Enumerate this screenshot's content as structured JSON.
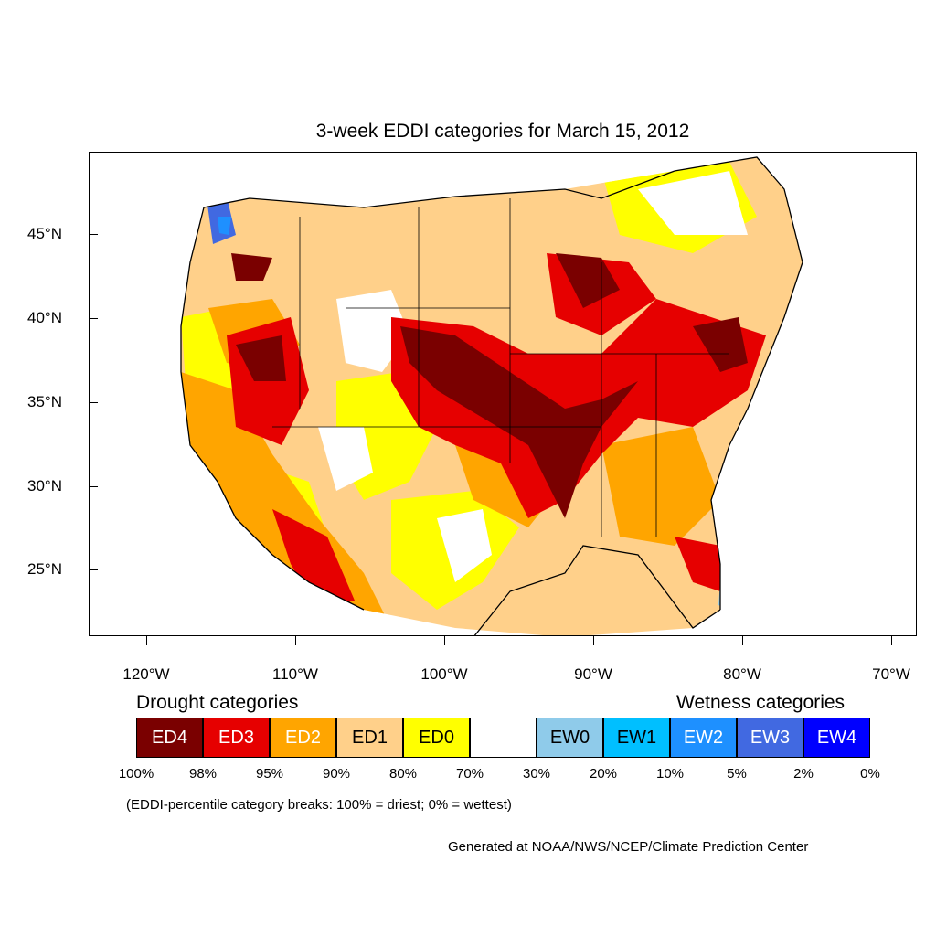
{
  "title": "3-week EDDI categories for March 15, 2012",
  "y_axis": {
    "ticks": [
      "45°N",
      "40°N",
      "35°N",
      "30°N",
      "25°N"
    ]
  },
  "x_axis": {
    "ticks": [
      "120°W",
      "110°W",
      "100°W",
      "90°W",
      "80°W",
      "70°W"
    ]
  },
  "legend": {
    "drought_heading": "Drought categories",
    "wetness_heading": "Wetness categories",
    "categories": [
      {
        "label": "ED4",
        "color": "#7a0000",
        "text_color": "#ffffff"
      },
      {
        "label": "ED3",
        "color": "#e60000",
        "text_color": "#ffffff"
      },
      {
        "label": "ED2",
        "color": "#ffa500",
        "text_color": "#ffffff"
      },
      {
        "label": "ED1",
        "color": "#ffd08a",
        "text_color": "#000000"
      },
      {
        "label": "ED0",
        "color": "#ffff00",
        "text_color": "#000000"
      },
      {
        "label": "",
        "color": "#ffffff",
        "text_color": "#000000"
      },
      {
        "label": "EW0",
        "color": "#8fcbea",
        "text_color": "#000000"
      },
      {
        "label": "EW1",
        "color": "#00bfff",
        "text_color": "#000000"
      },
      {
        "label": "EW2",
        "color": "#1e90ff",
        "text_color": "#ffffff"
      },
      {
        "label": "EW3",
        "color": "#4169e1",
        "text_color": "#ffffff"
      },
      {
        "label": "EW4",
        "color": "#0000ff",
        "text_color": "#ffffff"
      }
    ],
    "breaks": [
      "100%",
      "98%",
      "95%",
      "90%",
      "80%",
      "70%",
      "30%",
      "20%",
      "10%",
      "5%",
      "2%",
      "0%"
    ]
  },
  "note": "(EDDI-percentile category breaks: 100% = driest; 0% = wettest)",
  "credit": "Generated at NOAA/NWS/NCEP/Climate Prediction Center"
}
